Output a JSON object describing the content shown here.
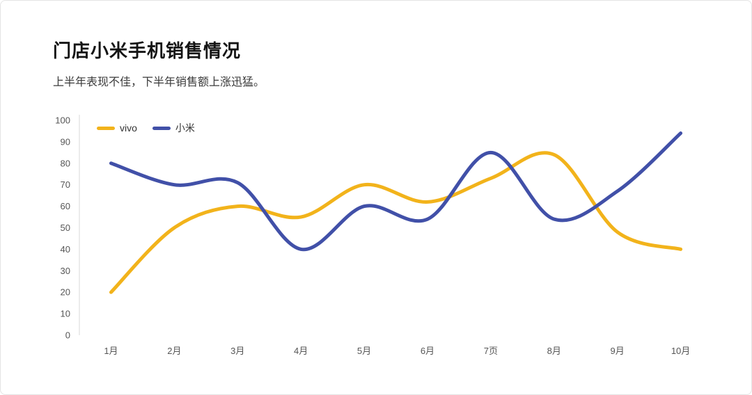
{
  "chart": {
    "title": "门店小米手机销售情况",
    "subtitle": "上半年表现不佳，下半年销售额上涨迅猛。"
  },
  "chart_data": {
    "type": "line",
    "smooth": true,
    "title": "门店小米手机销售情况",
    "subtitle": "上半年表现不佳，下半年销售额上涨迅猛。",
    "categories": [
      "1月",
      "2月",
      "3月",
      "4月",
      "5月",
      "6月",
      "7页",
      "8月",
      "9月",
      "10月"
    ],
    "series": [
      {
        "name": "vivo",
        "color": "#F2B31B",
        "values": [
          20,
          50,
          60,
          55,
          70,
          62,
          73,
          84,
          48,
          40
        ]
      },
      {
        "name": "小米",
        "color": "#4150A8",
        "values": [
          80,
          70,
          71,
          40,
          60,
          54,
          85,
          54,
          67,
          94
        ]
      }
    ],
    "xlabel": "",
    "ylabel": "",
    "ylim": [
      0,
      100
    ],
    "ytick_step": 10,
    "grid": false,
    "legend_position": "top-left",
    "axis_color": "#d9d9d9",
    "tick_label_color": "#555555"
  }
}
